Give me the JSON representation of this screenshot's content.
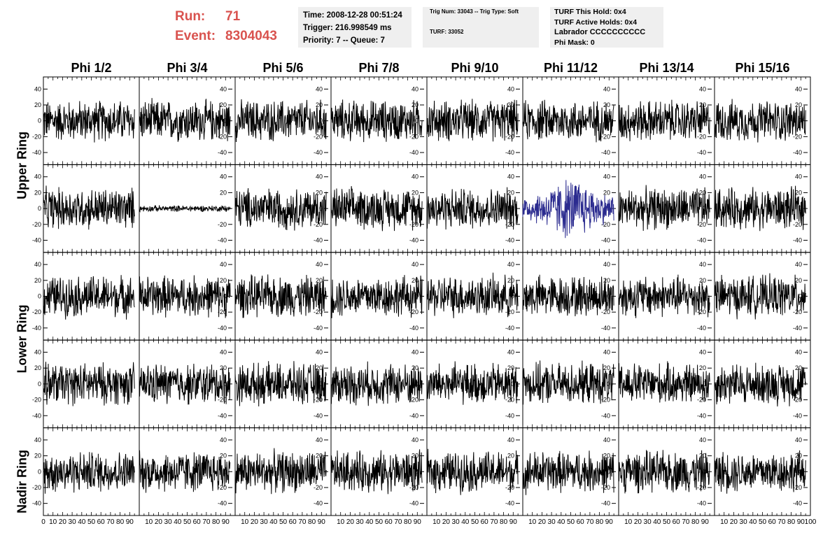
{
  "header": {
    "run_label": "Run:",
    "run_value": "71",
    "event_label": "Event:",
    "event_value": "8304043",
    "time": "Time: 2008-12-28 00:51:24",
    "trigger": "Trigger: 216.998549 ms",
    "priority": "Priority: 7 -- Queue: 7",
    "trig_num": "Trig Num: 33043 -- Trig Type: Soft",
    "turf": "TURF: 33052",
    "turf_this_hold": "TURF This Hold: 0x4",
    "turf_active_holds": "TURF Active Holds: 0x4",
    "labrador": "Labrador CCCCCCCCCC",
    "phi_mask": "Phi Mask: 0"
  },
  "columns": [
    "Phi 1/2",
    "Phi 3/4",
    "Phi 5/6",
    "Phi 7/8",
    "Phi 9/10",
    "Phi 11/12",
    "Phi 13/14",
    "Phi 15/16"
  ],
  "ring_labels": [
    "Upper Ring",
    "Lower Ring",
    "Nadir Ring"
  ],
  "colors": {
    "header_red": "#d9534f",
    "trace": "#000000",
    "highlight_trace": "#2b2b8f",
    "info_bg": "#efefef"
  },
  "chart_data": {
    "type": "line",
    "grid_rows": 5,
    "grid_cols": 8,
    "xlim": [
      0,
      100
    ],
    "ylim": [
      -50,
      50
    ],
    "y_ticks": [
      -40,
      -20,
      0,
      20,
      40
    ],
    "x_tick_labels": [
      "0",
      "10",
      "20",
      "30",
      "40",
      "50",
      "60",
      "70",
      "80",
      "90",
      "100"
    ],
    "samples_per_trace": 260,
    "trace_x_range": [
      0,
      95
    ],
    "typical_amplitude": 20,
    "quiet_trace": {
      "row": 1,
      "col": 1,
      "amplitude": 3
    },
    "highlight_trace": {
      "row": 1,
      "col": 5,
      "amplitude": 25
    },
    "y_axis_side": [
      "left",
      "right",
      "right",
      "right",
      "right",
      "right",
      "right",
      "right"
    ]
  }
}
